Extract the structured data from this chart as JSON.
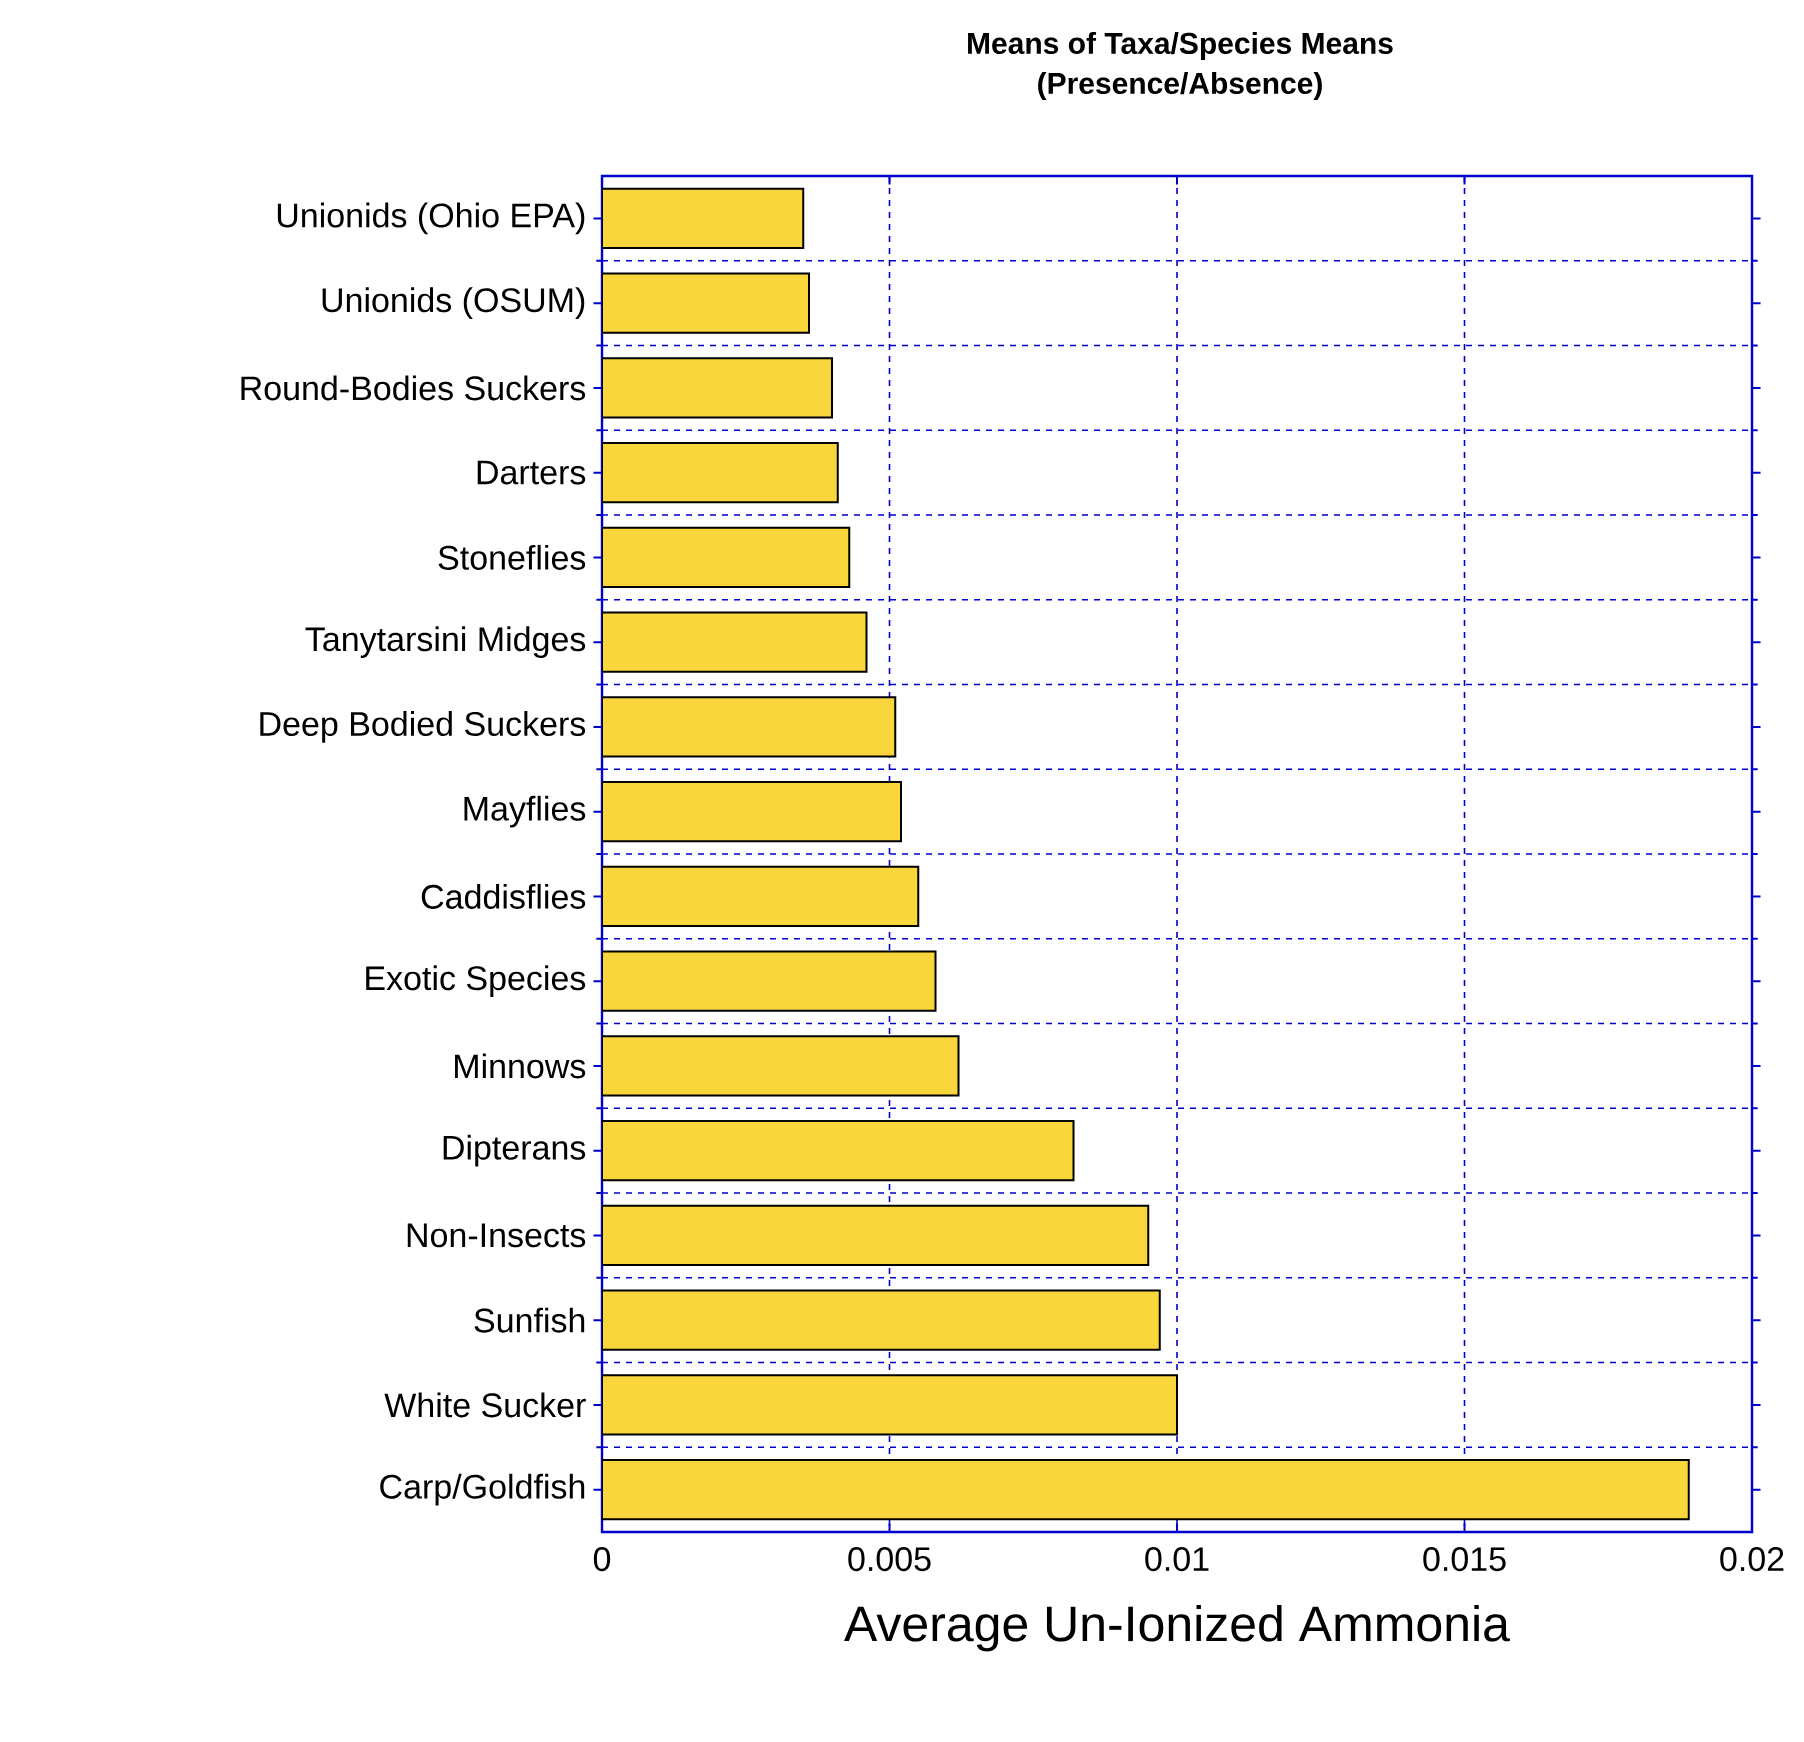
{
  "chart_data": {
    "type": "bar",
    "orientation": "horizontal",
    "title": "Means of Taxa/Species Means\n(Presence/Absence)",
    "xlabel": "Average Un-Ionized Ammonia",
    "categories": [
      "Unionids (Ohio EPA)",
      "Unionids (OSUM)",
      "Round-Bodies Suckers",
      "Darters",
      "Stoneflies",
      "Tanytarsini Midges",
      "Deep Bodied Suckers",
      "Mayflies",
      "Caddisflies",
      "Exotic Species",
      "Minnows",
      "Dipterans",
      "Non-Insects",
      "Sunfish",
      "White Sucker",
      "Carp/Goldfish"
    ],
    "values": [
      0.0035,
      0.0036,
      0.004,
      0.0041,
      0.0043,
      0.0046,
      0.0051,
      0.0052,
      0.0055,
      0.0058,
      0.0062,
      0.0082,
      0.0095,
      0.0097,
      0.01,
      0.0189
    ],
    "color": "#f9d63c",
    "xlim": [
      0,
      0.02
    ],
    "xticks": [
      0,
      0.005,
      0.01,
      0.015,
      0.02
    ],
    "grid": true
  }
}
